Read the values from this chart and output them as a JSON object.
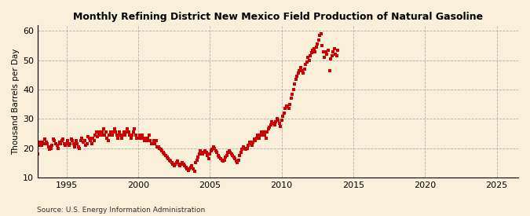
{
  "title": "Monthly Refining District New Mexico Field Production of Natural Gasoline",
  "ylabel": "Thousand Barrels per Day",
  "source": "Source: U.S. Energy Information Administration",
  "background_color": "#faefd9",
  "line_color": "#cc0000",
  "marker": "s",
  "markersize": 2.8,
  "ylim": [
    10,
    62
  ],
  "yticks": [
    10,
    20,
    30,
    40,
    50,
    60
  ],
  "xlim_start": 1993.0,
  "xlim_end": 2026.5,
  "xticks": [
    1995,
    2000,
    2005,
    2010,
    2015,
    2020,
    2025
  ],
  "values": [
    18.0,
    21.0,
    22.0,
    21.0,
    22.0,
    21.5,
    23.0,
    22.0,
    21.5,
    20.5,
    19.5,
    20.0,
    21.0,
    23.0,
    22.5,
    21.5,
    21.0,
    20.0,
    22.0,
    21.5,
    22.5,
    23.0,
    21.5,
    21.0,
    21.5,
    22.5,
    21.0,
    21.5,
    23.0,
    22.5,
    21.5,
    20.5,
    22.5,
    21.5,
    20.5,
    20.0,
    22.5,
    23.5,
    22.0,
    22.5,
    21.0,
    21.5,
    24.0,
    23.5,
    22.5,
    21.5,
    23.5,
    22.5,
    24.5,
    25.5,
    24.0,
    24.5,
    25.5,
    24.5,
    25.5,
    26.5,
    24.5,
    25.5,
    23.5,
    22.5,
    24.5,
    25.5,
    24.5,
    25.5,
    26.5,
    25.5,
    24.5,
    23.5,
    25.5,
    24.5,
    23.5,
    24.5,
    25.5,
    24.5,
    25.5,
    26.5,
    25.5,
    24.5,
    23.5,
    24.5,
    25.5,
    26.5,
    24.5,
    23.5,
    23.5,
    24.5,
    23.5,
    24.5,
    23.5,
    22.5,
    23.5,
    22.5,
    23.5,
    24.5,
    22.5,
    21.5,
    21.5,
    22.5,
    21.5,
    22.5,
    20.5,
    20.5,
    20.0,
    19.5,
    19.0,
    18.5,
    18.0,
    17.5,
    17.0,
    16.5,
    16.0,
    15.5,
    15.0,
    14.5,
    14.0,
    14.5,
    15.0,
    15.5,
    14.5,
    14.0,
    14.5,
    15.0,
    14.5,
    14.0,
    13.5,
    13.0,
    12.5,
    13.0,
    13.5,
    14.0,
    13.0,
    12.0,
    15.0,
    16.0,
    17.0,
    18.0,
    19.0,
    18.5,
    18.0,
    18.5,
    19.0,
    18.5,
    17.5,
    16.5,
    18.0,
    19.0,
    19.5,
    20.5,
    20.0,
    19.0,
    18.5,
    17.5,
    17.0,
    16.5,
    16.0,
    15.5,
    16.0,
    17.0,
    17.5,
    18.5,
    19.0,
    18.5,
    18.0,
    17.5,
    17.0,
    16.5,
    15.5,
    15.0,
    16.0,
    17.5,
    18.5,
    19.5,
    20.5,
    20.0,
    19.5,
    20.0,
    21.0,
    22.0,
    21.5,
    21.0,
    22.0,
    23.0,
    22.5,
    23.5,
    24.5,
    23.5,
    24.5,
    25.5,
    24.5,
    25.5,
    24.5,
    23.5,
    25.5,
    26.5,
    27.0,
    28.0,
    29.0,
    28.5,
    28.0,
    29.0,
    30.0,
    29.5,
    28.5,
    27.5,
    29.5,
    31.0,
    32.0,
    33.5,
    34.5,
    34.0,
    33.5,
    35.0,
    37.0,
    38.5,
    40.0,
    42.0,
    43.5,
    44.5,
    45.5,
    46.5,
    47.5,
    46.5,
    45.5,
    47.0,
    48.5,
    49.5,
    51.0,
    50.0,
    51.5,
    52.5,
    53.5,
    54.0,
    53.0,
    54.5,
    55.5,
    57.0,
    58.5,
    59.0,
    55.0,
    53.0,
    51.0,
    53.0,
    52.0,
    53.5,
    46.5,
    50.5,
    51.5,
    53.0,
    54.0,
    52.0,
    51.5,
    53.5
  ],
  "start_year": 1993,
  "start_month": 1
}
